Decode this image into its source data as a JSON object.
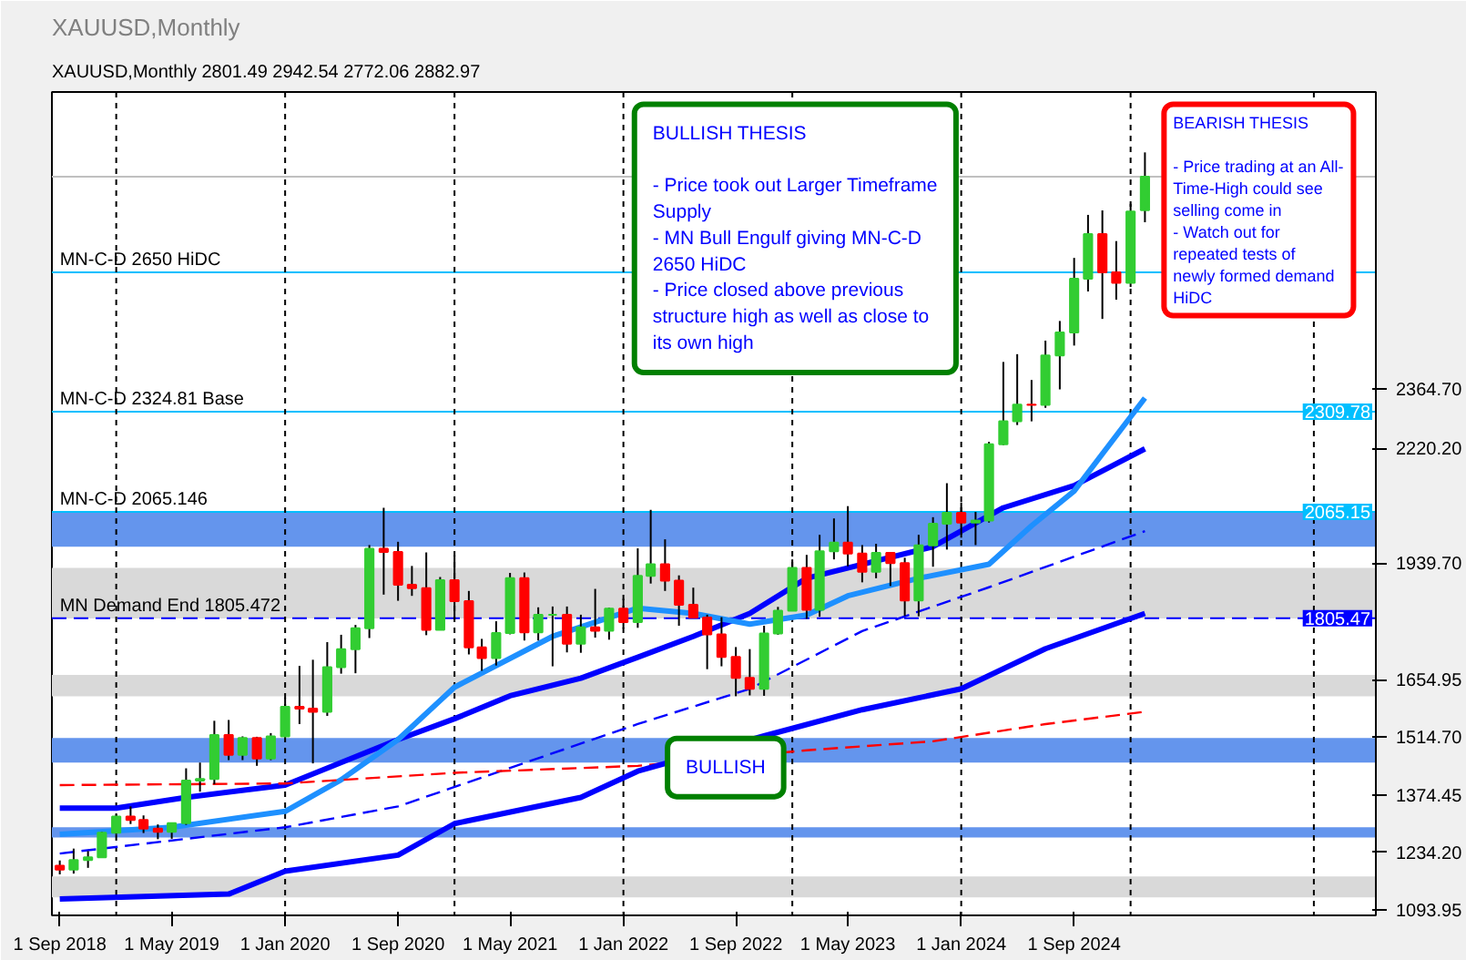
{
  "chart_data": {
    "type": "candlestick",
    "title": "XAUUSD,Monthly",
    "subtitle": "XAUUSD,Monthly  2801.49 2942.54 2772.06 2882.97",
    "x": [
      "2018-09",
      "2018-10",
      "2018-11",
      "2018-12",
      "2019-01",
      "2019-02",
      "2019-03",
      "2019-04",
      "2019-05",
      "2019-06",
      "2019-07",
      "2019-08",
      "2019-09",
      "2019-10",
      "2019-11",
      "2019-12",
      "2020-01",
      "2020-02",
      "2020-03",
      "2020-04",
      "2020-05",
      "2020-06",
      "2020-07",
      "2020-08",
      "2020-09",
      "2020-10",
      "2020-11",
      "2020-12",
      "2021-01",
      "2021-02",
      "2021-03",
      "2021-04",
      "2021-05",
      "2021-06",
      "2021-07",
      "2021-08",
      "2021-09",
      "2021-10",
      "2021-11",
      "2021-12",
      "2022-01",
      "2022-02",
      "2022-03",
      "2022-04",
      "2022-05",
      "2022-06",
      "2022-07",
      "2022-08",
      "2022-09",
      "2022-10",
      "2022-11",
      "2022-12",
      "2023-01",
      "2023-02",
      "2023-03",
      "2023-04",
      "2023-05",
      "2023-06",
      "2023-07",
      "2023-08",
      "2023-09",
      "2023-10",
      "2023-11",
      "2023-12",
      "2024-01",
      "2024-02",
      "2024-03",
      "2024-04",
      "2024-05",
      "2024-06",
      "2024-07",
      "2024-08",
      "2024-09",
      "2024-10",
      "2024-11",
      "2024-12",
      "2025-01",
      "2025-02"
    ],
    "ohlc": [
      [
        1201,
        1214,
        1180,
        1192
      ],
      [
        1192,
        1243,
        1182,
        1215
      ],
      [
        1215,
        1237,
        1196,
        1222
      ],
      [
        1222,
        1284,
        1221,
        1282
      ],
      [
        1282,
        1326,
        1276,
        1321
      ],
      [
        1321,
        1346,
        1303,
        1313
      ],
      [
        1313,
        1324,
        1281,
        1292
      ],
      [
        1292,
        1302,
        1266,
        1284
      ],
      [
        1284,
        1306,
        1267,
        1305
      ],
      [
        1305,
        1439,
        1301,
        1409
      ],
      [
        1409,
        1453,
        1382,
        1413
      ],
      [
        1413,
        1555,
        1400,
        1520
      ],
      [
        1520,
        1557,
        1459,
        1472
      ],
      [
        1472,
        1517,
        1459,
        1513
      ],
      [
        1513,
        1516,
        1445,
        1463
      ],
      [
        1463,
        1525,
        1459,
        1517
      ],
      [
        1517,
        1611,
        1517,
        1589
      ],
      [
        1589,
        1689,
        1547,
        1585
      ],
      [
        1585,
        1704,
        1451,
        1577
      ],
      [
        1577,
        1747,
        1567,
        1686
      ],
      [
        1686,
        1765,
        1670,
        1730
      ],
      [
        1730,
        1789,
        1671,
        1781
      ],
      [
        1781,
        1984,
        1757,
        1975
      ],
      [
        1975,
        2075,
        1863,
        1967
      ],
      [
        1967,
        1992,
        1848,
        1887
      ],
      [
        1887,
        1933,
        1860,
        1879
      ],
      [
        1879,
        1966,
        1764,
        1777
      ],
      [
        1777,
        1906,
        1776,
        1898
      ],
      [
        1898,
        1959,
        1802,
        1847
      ],
      [
        1847,
        1872,
        1717,
        1734
      ],
      [
        1734,
        1755,
        1677,
        1708
      ],
      [
        1708,
        1798,
        1690,
        1769
      ],
      [
        1769,
        1916,
        1766,
        1903
      ],
      [
        1903,
        1917,
        1751,
        1771
      ],
      [
        1771,
        1832,
        1751,
        1814
      ],
      [
        1814,
        1834,
        1688,
        1814
      ],
      [
        1814,
        1834,
        1722,
        1743
      ],
      [
        1743,
        1814,
        1721,
        1783
      ],
      [
        1783,
        1877,
        1758,
        1775
      ],
      [
        1775,
        1831,
        1753,
        1829
      ],
      [
        1829,
        1853,
        1780,
        1796
      ],
      [
        1796,
        1976,
        1782,
        1909
      ],
      [
        1909,
        2070,
        1890,
        1937
      ],
      [
        1937,
        1998,
        1872,
        1897
      ],
      [
        1897,
        1910,
        1787,
        1838
      ],
      [
        1838,
        1880,
        1805,
        1807
      ],
      [
        1807,
        1814,
        1681,
        1766
      ],
      [
        1766,
        1808,
        1688,
        1711
      ],
      [
        1711,
        1735,
        1615,
        1660
      ],
      [
        1660,
        1730,
        1617,
        1633
      ],
      [
        1633,
        1787,
        1616,
        1768
      ],
      [
        1768,
        1833,
        1765,
        1824
      ],
      [
        1824,
        1949,
        1823,
        1928
      ],
      [
        1928,
        1960,
        1804,
        1826
      ],
      [
        1826,
        2009,
        1809,
        1969
      ],
      [
        1969,
        2049,
        1949,
        1990
      ],
      [
        1990,
        2079,
        1932,
        1963
      ],
      [
        1963,
        1984,
        1893,
        1919
      ],
      [
        1919,
        1987,
        1903,
        1965
      ],
      [
        1965,
        1966,
        1884,
        1940
      ],
      [
        1940,
        1953,
        1811,
        1849
      ],
      [
        1849,
        2009,
        1810,
        1983
      ],
      [
        1983,
        2052,
        1931,
        2036
      ],
      [
        2036,
        2135,
        1973,
        2063
      ],
      [
        2063,
        2088,
        2002,
        2039
      ],
      [
        2039,
        2065,
        1984,
        2044
      ],
      [
        2044,
        2236,
        2039,
        2230
      ],
      [
        2230,
        2431,
        2228,
        2286
      ],
      [
        2286,
        2450,
        2277,
        2327
      ],
      [
        2327,
        2387,
        2286,
        2326
      ],
      [
        2326,
        2483,
        2319,
        2447
      ],
      [
        2447,
        2531,
        2364,
        2503
      ],
      [
        2503,
        2685,
        2471,
        2634
      ],
      [
        2634,
        2790,
        2603,
        2743
      ],
      [
        2743,
        2801,
        2536,
        2650
      ],
      [
        2650,
        2726,
        2583,
        2624
      ],
      [
        2624,
        2817,
        2614,
        2798
      ],
      [
        2801.49,
        2942.54,
        2772.06,
        2882.97
      ]
    ],
    "colors": [
      "#ff0000",
      "#32cd32",
      "#32cd32",
      "#32cd32",
      "#32cd32",
      "#ff0000",
      "#ff0000",
      "#ff0000",
      "#32cd32",
      "#32cd32",
      "#32cd32",
      "#32cd32",
      "#ff0000",
      "#32cd32",
      "#ff0000",
      "#32cd32",
      "#32cd32",
      "#ff0000",
      "#ff0000",
      "#32cd32",
      "#32cd32",
      "#32cd32",
      "#32cd32",
      "#ff0000",
      "#ff0000",
      "#ff0000",
      "#ff0000",
      "#32cd32",
      "#ff0000",
      "#ff0000",
      "#ff0000",
      "#32cd32",
      "#32cd32",
      "#ff0000",
      "#32cd32",
      "#32cd32",
      "#ff0000",
      "#32cd32",
      "#ff0000",
      "#32cd32",
      "#ff0000",
      "#32cd32",
      "#32cd32",
      "#ff0000",
      "#ff0000",
      "#ff0000",
      "#ff0000",
      "#ff0000",
      "#ff0000",
      "#ff0000",
      "#32cd32",
      "#32cd32",
      "#32cd32",
      "#ff0000",
      "#32cd32",
      "#32cd32",
      "#ff0000",
      "#ff0000",
      "#32cd32",
      "#ff0000",
      "#ff0000",
      "#32cd32",
      "#32cd32",
      "#32cd32",
      "#ff0000",
      "#32cd32",
      "#32cd32",
      "#32cd32",
      "#32cd32",
      "#ff0000",
      "#32cd32",
      "#32cd32",
      "#32cd32",
      "#32cd32",
      "#ff0000",
      "#ff0000",
      "#32cd32",
      "#32cd32"
    ],
    "series": [
      {
        "type": "line",
        "color": "#0000ff",
        "line_style": "solid",
        "x": [
          "2018-09",
          "2019-01",
          "2019-06",
          "2020-01",
          "2020-09",
          "2021-01",
          "2021-05",
          "2021-10",
          "2022-02",
          "2022-06",
          "2022-10",
          "2023-02",
          "2023-11",
          "2024-04",
          "2024-09",
          "2025-02"
        ],
        "values": [
          1342,
          1342,
          1368,
          1398,
          1509,
          1560,
          1616,
          1659,
          1710,
          1761,
          1817,
          1903,
          1980,
          2075,
          2129,
          2219
        ]
      },
      {
        "type": "line",
        "color": "#1e90ff",
        "line_style": "solid",
        "x": [
          "2018-09",
          "2019-05",
          "2020-01",
          "2020-05",
          "2020-09",
          "2021-01",
          "2021-08",
          "2022-02",
          "2022-06",
          "2022-10",
          "2023-02",
          "2023-05",
          "2023-10",
          "2024-03",
          "2024-06",
          "2024-09",
          "2025-02"
        ],
        "values": [
          1278,
          1295,
          1334,
          1411,
          1509,
          1637,
          1761,
          1830,
          1817,
          1791,
          1813,
          1860,
          1903,
          1937,
          2031,
          2116,
          2343
        ]
      },
      {
        "type": "line",
        "color": "#0000ff",
        "line_style": "dashed",
        "x": [
          "2018-09",
          "2020-01",
          "2020-09",
          "2021-05",
          "2022-02",
          "2022-10",
          "2023-06",
          "2024-03",
          "2025-02"
        ],
        "values": [
          1231,
          1295,
          1346,
          1440,
          1547,
          1633,
          1774,
          1881,
          2018
        ]
      },
      {
        "type": "line",
        "color": "#ff0000",
        "line_style": "dashed",
        "x": [
          "2018-09",
          "2020-01",
          "2021-01",
          "2022-02",
          "2023-02",
          "2023-11",
          "2024-07",
          "2025-02"
        ],
        "values": [
          1398,
          1402,
          1428,
          1445,
          1483,
          1505,
          1547,
          1577
        ]
      },
      {
        "type": "line",
        "color": "#0000ff",
        "line_style": "solid",
        "x": [
          "2018-09",
          "2019-09",
          "2020-01",
          "2020-09",
          "2021-01",
          "2021-10",
          "2022-02",
          "2022-11",
          "2023-06",
          "2024-01",
          "2024-07",
          "2025-02"
        ],
        "values": [
          1120,
          1132,
          1188,
          1227,
          1304,
          1368,
          1432,
          1518,
          1582,
          1633,
          1731,
          1817
        ]
      }
    ],
    "xlim": [
      "2018-08-15",
      "2026-06-15"
    ],
    "xticks": [
      {
        "value": "2018-09",
        "label": "1 Sep 2018"
      },
      {
        "value": "2019-05",
        "label": "1 May 2019"
      },
      {
        "value": "2020-01",
        "label": "1 Jan 2020"
      },
      {
        "value": "2020-09",
        "label": "1 Sep 2020"
      },
      {
        "value": "2021-05",
        "label": "1 May 2021"
      },
      {
        "value": "2022-01",
        "label": "1 Jan 2022"
      },
      {
        "value": "2022-09",
        "label": "1 Sep 2022"
      },
      {
        "value": "2023-05",
        "label": "1 May 2023"
      },
      {
        "value": "2024-01",
        "label": "1 Jan 2024"
      },
      {
        "value": "2024-09",
        "label": "1 Sep 2024"
      }
    ],
    "ylim": [
      1080,
      3090
    ],
    "yticks": [
      {
        "value": 1093.95,
        "label": "1093.95"
      },
      {
        "value": 1234.2,
        "label": "1234.20"
      },
      {
        "value": 1374.45,
        "label": "1374.45"
      },
      {
        "value": 1514.7,
        "label": "1514.70"
      },
      {
        "value": 1654.95,
        "label": "1654.95"
      },
      {
        "value": 1939.7,
        "label": "1939.70"
      },
      {
        "value": 2220.2,
        "label": "2220.20"
      },
      {
        "value": 2364.7,
        "label": "2364.70"
      }
    ],
    "grid": false,
    "ref_lines": [
      {
        "axis": "y",
        "value": 2882.97,
        "color": "#c0c0c0",
        "line_style": "solid"
      },
      {
        "axis": "y",
        "value": 2650,
        "color": "#00bfff",
        "line_style": "solid"
      },
      {
        "axis": "y",
        "value": 2309.78,
        "label": "2309.78",
        "color": "#00bfff",
        "line_style": "solid"
      },
      {
        "axis": "y",
        "value": 2065.146,
        "label": "2065.15",
        "color": "#00bfff",
        "line_style": "solid"
      },
      {
        "axis": "y",
        "value": 1805.472,
        "label": "1805.47",
        "color": "#0000ff",
        "line_style": "dashed"
      },
      {
        "axis": "x",
        "value": "2019-01",
        "color": "#000000",
        "line_style": "dotted"
      },
      {
        "axis": "x",
        "value": "2020-01",
        "color": "#000000",
        "line_style": "dotted"
      },
      {
        "axis": "x",
        "value": "2021-01",
        "color": "#000000",
        "line_style": "dotted"
      },
      {
        "axis": "x",
        "value": "2022-01",
        "color": "#000000",
        "line_style": "dotted"
      },
      {
        "axis": "x",
        "value": "2023-01",
        "color": "#000000",
        "line_style": "dotted"
      },
      {
        "axis": "x",
        "value": "2024-01",
        "color": "#000000",
        "line_style": "dotted"
      },
      {
        "axis": "x",
        "value": "2025-01",
        "color": "#000000",
        "line_style": "dotted"
      },
      {
        "axis": "x",
        "value": "2026-02",
        "color": "#000000",
        "line_style": "dotted"
      }
    ],
    "bands": [
      {
        "axis": "y",
        "from": 1980,
        "to": 2065,
        "color": "#6495ed"
      },
      {
        "axis": "y",
        "from": 1805,
        "to": 1928,
        "color": "#d9d9d9"
      },
      {
        "axis": "y",
        "from": 1615,
        "to": 1667,
        "color": "#d9d9d9"
      },
      {
        "axis": "y",
        "from": 1453,
        "to": 1513,
        "color": "#6495ed"
      },
      {
        "axis": "y",
        "from": 1270,
        "to": 1295,
        "color": "#6495ed"
      },
      {
        "axis": "y",
        "from": 1124,
        "to": 1175,
        "color": "#d9d9d9"
      }
    ],
    "annotations": [
      {
        "text": "MN-C-D 2650 HiDC",
        "x": "2018-09",
        "y": 2650
      },
      {
        "text": "MN-C-D 2324.81 Base",
        "x": "2018-09",
        "y": 2309.78
      },
      {
        "text": "MN-C-D 2065.146",
        "x": "2018-09",
        "y": 2065.146
      },
      {
        "text": "MN Demand End 1805.472",
        "x": "2018-09",
        "y": 1805.472
      },
      "BULLISH THESIS\n\n- Price took out Larger Timeframe\nSupply\n- MN Bull Engulf giving MN-C-D\n2650 HiDC\n- Price closed above previous\nstructure high as well as close to\nits own high",
      "BEARISH THESIS\n\n- Price trading at an All-\nTime-High could see\nselling come in\n- Watch out for\nrepeated tests of\nnewly formed demand\nHiDC",
      "BULLISH"
    ]
  }
}
